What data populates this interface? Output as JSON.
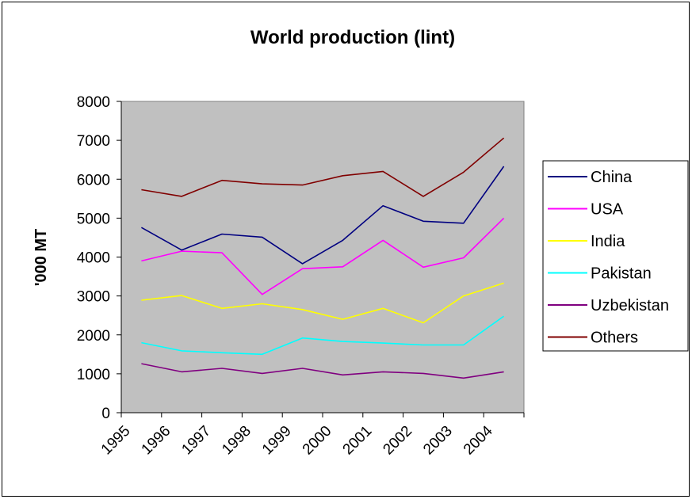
{
  "chart_data": {
    "type": "line",
    "title": "World production (lint)",
    "ylabel": "'000 MT",
    "xlabel": "",
    "categories": [
      "1995",
      "1996",
      "1997",
      "1998",
      "1999",
      "2000",
      "2001",
      "2002",
      "2003",
      "2004"
    ],
    "ylim": [
      0,
      8000
    ],
    "yticks": [
      0,
      1000,
      2000,
      3000,
      4000,
      5000,
      6000,
      7000,
      8000
    ],
    "grid": false,
    "legend_position": "right",
    "plot_background": "#c0c0c0",
    "series": [
      {
        "name": "China",
        "color": "#000080",
        "values": [
          4760,
          4180,
          4590,
          4510,
          3830,
          4430,
          5320,
          4920,
          4870,
          6330
        ]
      },
      {
        "name": "USA",
        "color": "#ff00ff",
        "values": [
          3900,
          4150,
          4110,
          3040,
          3700,
          3750,
          4430,
          3740,
          3980,
          5000
        ]
      },
      {
        "name": "India",
        "color": "#ffff00",
        "values": [
          2890,
          3010,
          2680,
          2800,
          2650,
          2400,
          2680,
          2310,
          3000,
          3330
        ]
      },
      {
        "name": "Pakistan",
        "color": "#00ffff",
        "values": [
          1800,
          1590,
          1540,
          1500,
          1920,
          1830,
          1790,
          1740,
          1740,
          2480
        ]
      },
      {
        "name": "Uzbekistan",
        "color": "#800080",
        "values": [
          1260,
          1050,
          1140,
          1010,
          1140,
          970,
          1050,
          1010,
          890,
          1050
        ]
      },
      {
        "name": "Others",
        "color": "#800000",
        "values": [
          5730,
          5560,
          5970,
          5880,
          5850,
          6090,
          6200,
          5560,
          6180,
          7060
        ]
      }
    ]
  }
}
